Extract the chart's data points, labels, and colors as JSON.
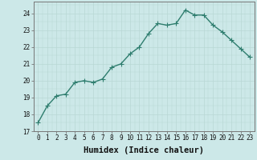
{
  "x": [
    0,
    1,
    2,
    3,
    4,
    5,
    6,
    7,
    8,
    9,
    10,
    11,
    12,
    13,
    14,
    15,
    16,
    17,
    18,
    19,
    20,
    21,
    22,
    23
  ],
  "y": [
    17.5,
    18.5,
    19.1,
    19.2,
    19.9,
    20.0,
    19.9,
    20.1,
    20.8,
    21.0,
    21.6,
    22.0,
    22.8,
    23.4,
    23.3,
    23.4,
    24.2,
    23.9,
    23.9,
    23.3,
    22.9,
    22.4,
    21.9,
    21.4
  ],
  "line_color": "#2e7d6e",
  "marker": "+",
  "marker_size": 4,
  "bg_color": "#cce8e8",
  "grid_color": "#b8d8d4",
  "xlabel": "Humidex (Indice chaleur)",
  "xlim": [
    -0.5,
    23.5
  ],
  "ylim": [
    17,
    24.7
  ],
  "yticks": [
    17,
    18,
    19,
    20,
    21,
    22,
    23,
    24
  ],
  "xticks": [
    0,
    1,
    2,
    3,
    4,
    5,
    6,
    7,
    8,
    9,
    10,
    11,
    12,
    13,
    14,
    15,
    16,
    17,
    18,
    19,
    20,
    21,
    22,
    23
  ],
  "tick_fontsize": 5.5,
  "label_fontsize": 7.5,
  "linewidth": 1.0
}
